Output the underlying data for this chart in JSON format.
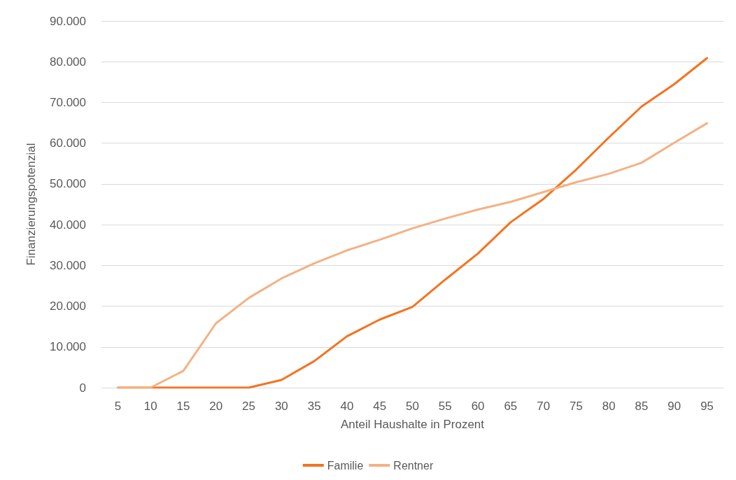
{
  "chart_data": {
    "type": "line",
    "xlabel": "Anteil Haushalte in Prozent",
    "ylabel": "Finanzierungspotenzial",
    "categories": [
      "5",
      "10",
      "15",
      "20",
      "25",
      "30",
      "35",
      "40",
      "45",
      "50",
      "55",
      "60",
      "65",
      "70",
      "75",
      "80",
      "85",
      "90",
      "95"
    ],
    "series": [
      {
        "name": "Familie",
        "color": "#f47320",
        "values": [
          0,
          0,
          0,
          0,
          0,
          1900,
          6500,
          12600,
          16700,
          19800,
          26500,
          32900,
          40600,
          46300,
          53500,
          61400,
          69000,
          74500,
          80900
        ]
      },
      {
        "name": "Rentner",
        "color": "#f4b183",
        "values": [
          0,
          0,
          4100,
          15800,
          22000,
          26800,
          30500,
          33700,
          36300,
          39100,
          41500,
          43700,
          45600,
          48000,
          50400,
          52500,
          55200,
          60100,
          64900
        ]
      }
    ],
    "ylim": [
      0,
      90000
    ],
    "yticks": [
      {
        "value": 0,
        "label": "0"
      },
      {
        "value": 10000,
        "label": "10.000"
      },
      {
        "value": 20000,
        "label": "20.000"
      },
      {
        "value": 30000,
        "label": "30.000"
      },
      {
        "value": 40000,
        "label": "40.000"
      },
      {
        "value": 50000,
        "label": "50.000"
      },
      {
        "value": 60000,
        "label": "60.000"
      },
      {
        "value": 70000,
        "label": "70.000"
      },
      {
        "value": 80000,
        "label": "80.000"
      },
      {
        "value": 90000,
        "label": "90.000"
      }
    ],
    "grid": "y",
    "legend": "bottom",
    "marker": "none",
    "line_style": "solid"
  }
}
